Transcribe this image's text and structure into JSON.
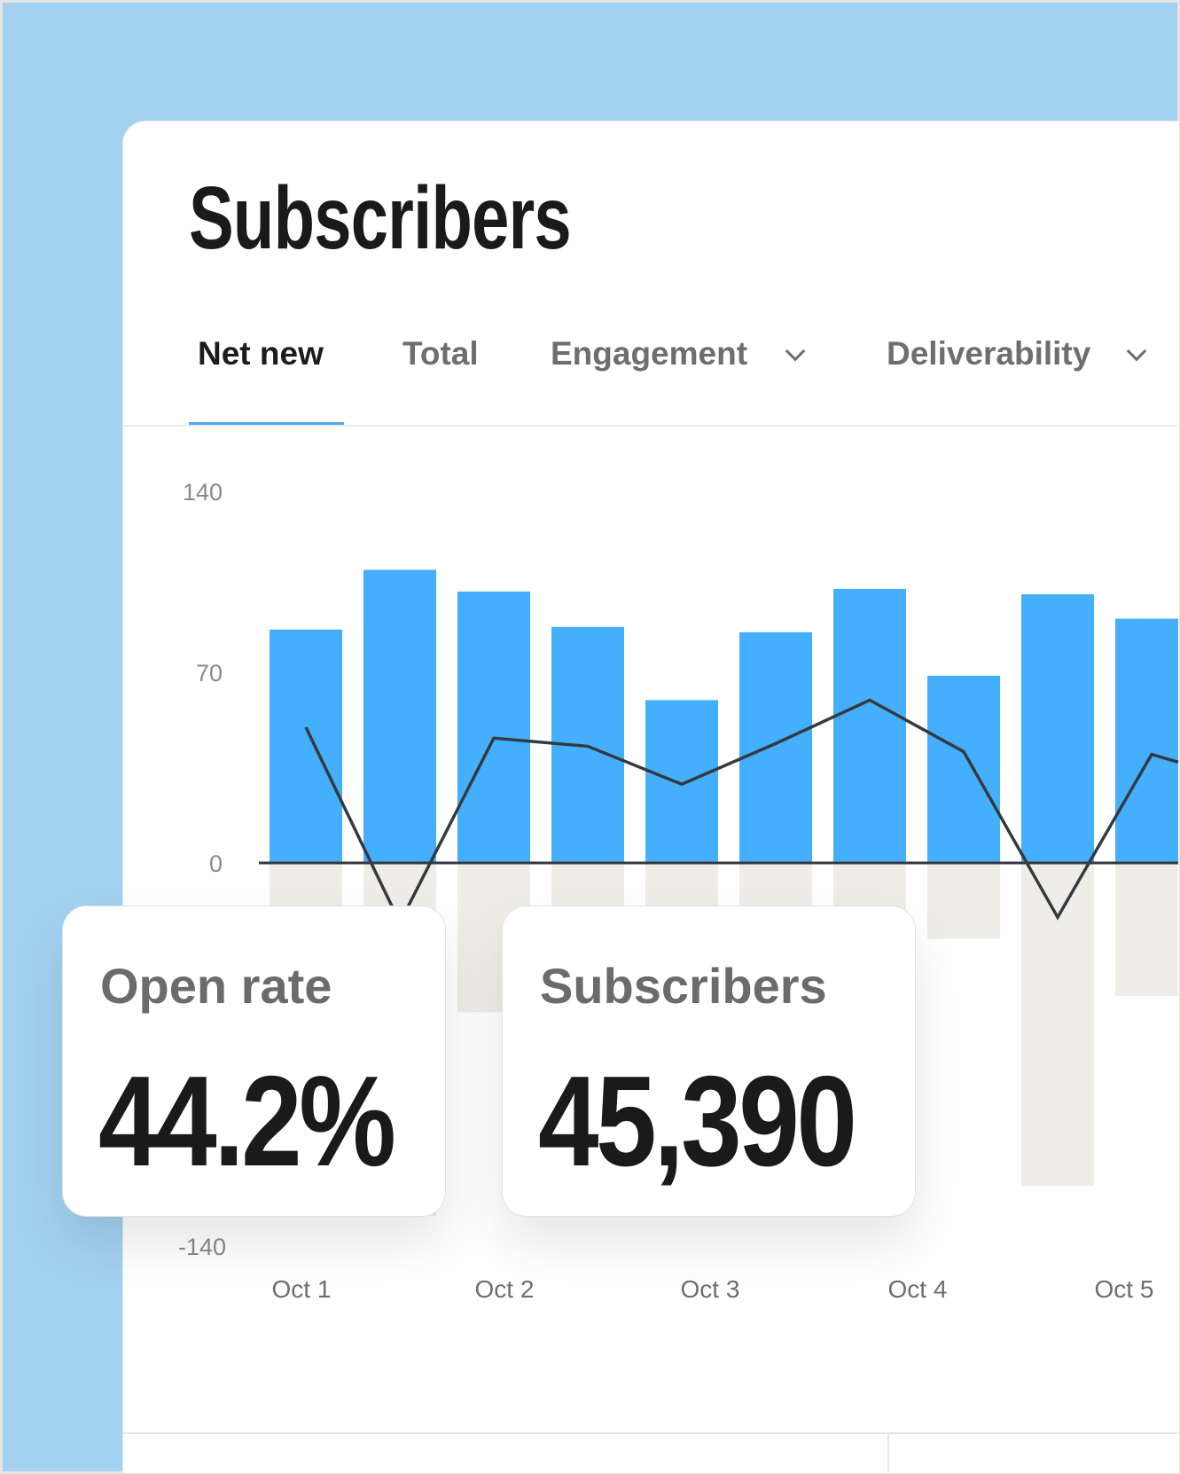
{
  "header": {
    "title": "Subscribers"
  },
  "tabs": [
    {
      "label": "Net new",
      "active": true
    },
    {
      "label": "Total",
      "active": false
    },
    {
      "label": "Engagement",
      "active": false,
      "icon": "chevron-down-icon"
    },
    {
      "label": "Deliverability",
      "active": false,
      "icon": "chevron-down-icon"
    }
  ],
  "stats": {
    "open_rate": {
      "label": "Open rate",
      "value": "44.2%"
    },
    "subscribers": {
      "label": "Subscribers",
      "value": "45,390"
    }
  },
  "colors": {
    "accent": "#4aa8f0",
    "positive_bar": "#44affc",
    "negative_bar": "#f0ede8",
    "line": "#343a40",
    "background": "#a3d1f0"
  },
  "chart_data": {
    "type": "bar",
    "ylim": [
      -140,
      140
    ],
    "yticks": [
      "140",
      "70",
      "0",
      "-140"
    ],
    "xticks": [
      "Oct 1",
      "Oct 2",
      "Oct 3",
      "Oct 4",
      "Oct 5"
    ],
    "series": [
      {
        "type": "bar",
        "values": [
          86,
          108,
          100,
          87,
          60,
          85,
          101,
          69,
          99,
          90
        ]
      },
      {
        "type": "bar",
        "values": [
          -60,
          -130,
          -55,
          -40,
          -30,
          -45,
          -35,
          -28,
          -119,
          -49
        ]
      },
      {
        "type": "line",
        "values": [
          50,
          -22,
          46,
          43,
          29,
          44,
          60,
          41,
          -20,
          40,
          30
        ]
      }
    ]
  }
}
